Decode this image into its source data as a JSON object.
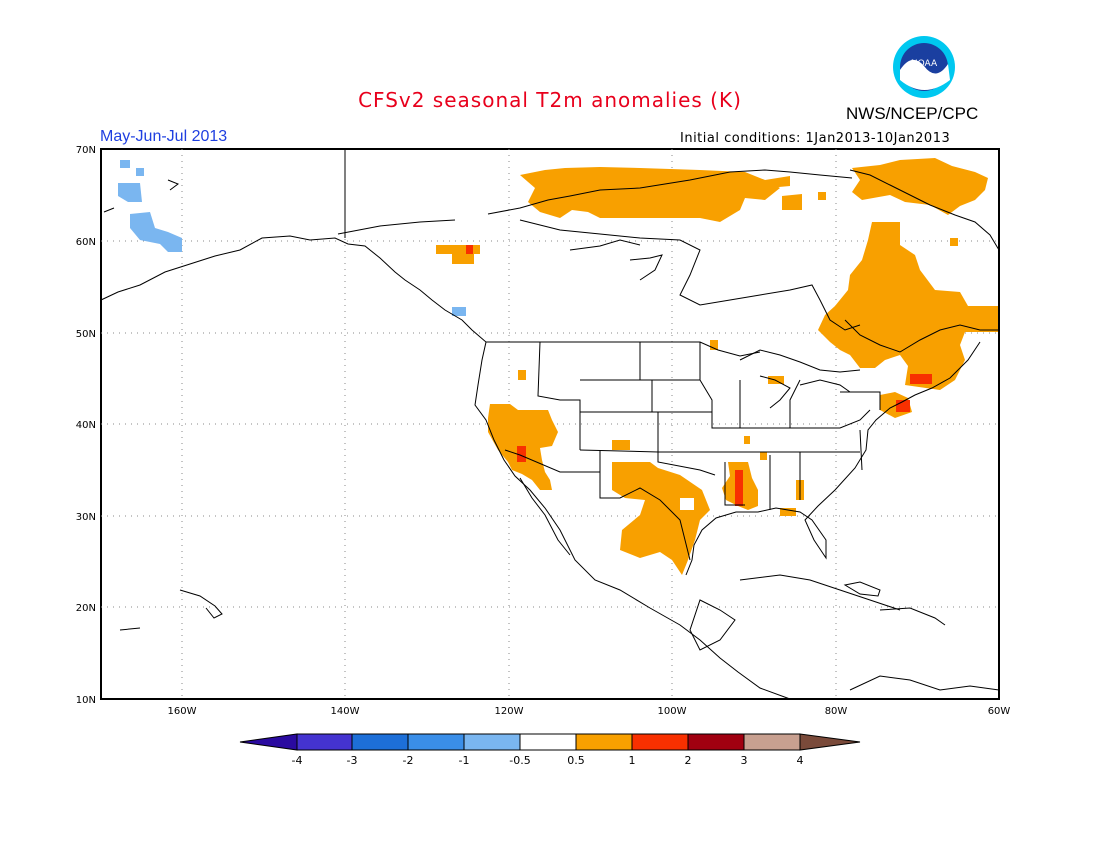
{
  "title": "CFSv2 seasonal T2m anomalies (K)",
  "agency": "NWS/NCEP/CPC",
  "logo_text": "NOAA",
  "season": "May-Jun-Jul 2013",
  "initial_conditions": "Initial conditions: 1Jan2013-10Jan2013",
  "axes": {
    "lat_ticks": [
      "70N",
      "60N",
      "50N",
      "40N",
      "30N",
      "20N",
      "10N"
    ],
    "lon_ticks": [
      "160W",
      "140W",
      "120W",
      "100W",
      "80W",
      "60W"
    ],
    "lat_range": [
      10,
      70
    ],
    "lon_range": [
      -170,
      -60
    ]
  },
  "colorbar": {
    "labels": [
      "-4",
      "-3",
      "-2",
      "-1",
      "-0.5",
      "0.5",
      "1",
      "2",
      "3",
      "4"
    ],
    "colors": [
      "#2a0aa0",
      "#4433d0",
      "#1d6fd8",
      "#3a8ee8",
      "#7ab6f0",
      "#ffffff",
      "#f8a000",
      "#f83000",
      "#a00010",
      "#c8a090",
      "#7a4a3a"
    ]
  },
  "anomaly_regions": [
    {
      "name": "northern Canada",
      "level": "0.5-1"
    },
    {
      "name": "Quebec and Labrador",
      "level": "0.5-1"
    },
    {
      "name": "New England",
      "level": "1-2"
    },
    {
      "name": "California and Nevada",
      "level": "1-2"
    },
    {
      "name": "Texas and New Mexico",
      "level": "0.5-1"
    },
    {
      "name": "Lower Mississippi Valley",
      "level": "1-2"
    },
    {
      "name": "western Alaska coast",
      "level": "-1 to -0.5"
    }
  ]
}
